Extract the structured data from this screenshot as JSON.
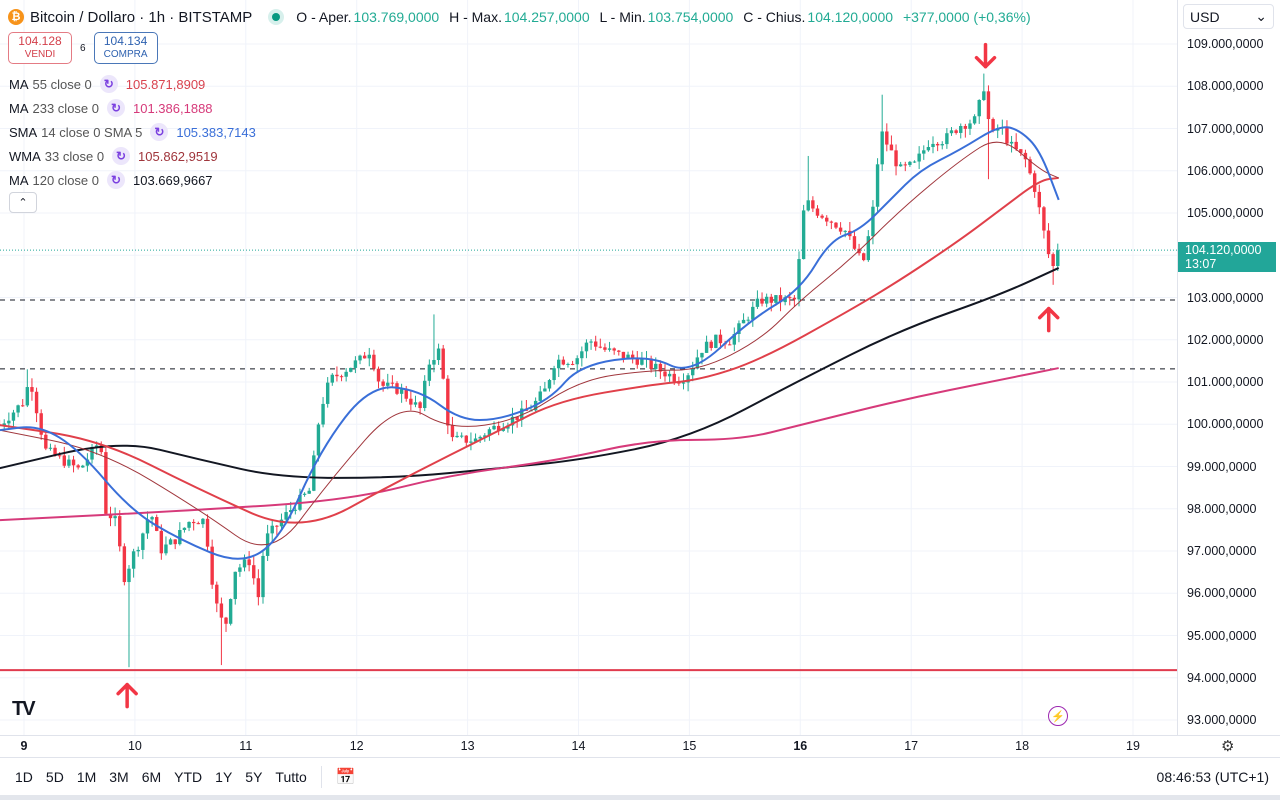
{
  "header": {
    "coin_icon": "₿",
    "title": "Bitcoin / Dollaro · 1h · BITSTAMP",
    "ohlc": [
      {
        "label": "O - Aper.",
        "value": "103.769,0000"
      },
      {
        "label": "H - Max.",
        "value": "104.257,0000"
      },
      {
        "label": "L - Min.",
        "value": "103.754,0000"
      },
      {
        "label": "C - Chius.",
        "value": "104.120,0000"
      }
    ],
    "change": "+377,0000 (+0,36%)"
  },
  "trade": {
    "sell_price": "104.128",
    "sell_label": "VENDI",
    "spread": "6",
    "buy_price": "104.134",
    "buy_label": "COMPRA"
  },
  "legend": [
    {
      "name": "MA",
      "params": "55 close 0",
      "value": "105.871,8909",
      "color": "#d9434f"
    },
    {
      "name": "MA",
      "params": "233 close 0",
      "value": "101.386,1888",
      "color": "#d63a7a"
    },
    {
      "name": "SMA",
      "params": "14 close 0 SMA 5",
      "value": "105.383,7143",
      "color": "#3a6fd8"
    },
    {
      "name": "WMA",
      "params": "33 close 0",
      "value": "105.862,9519",
      "color": "#a0363c"
    },
    {
      "name": "MA",
      "params": "120 close 0",
      "value": "103.669,9667",
      "color": "#131722"
    }
  ],
  "legend_icon": "↻",
  "collapse_icon": "⌃",
  "axis": {
    "currency": "USD",
    "currency_chevron": "⌄",
    "current_price": "104.120,0000",
    "countdown": "13:07"
  },
  "bottom": {
    "ranges": [
      "1D",
      "5D",
      "1M",
      "3M",
      "6M",
      "YTD",
      "1Y",
      "5Y",
      "Tutto"
    ],
    "calendar_icon": "📅",
    "clock": "08:46:53 (UTC+1)",
    "gear_icon": "⚙",
    "logo": "TV",
    "bolt_icon": "⚡"
  },
  "chart_data": {
    "type": "candlestick",
    "title": "Bitcoin / Dollaro · 1h · BITSTAMP",
    "xlabel": "day of month",
    "ylabel": "USD",
    "xlim": [
      8.78,
      19.4
    ],
    "ylim": [
      92700,
      109900
    ],
    "grid": true,
    "colors": {
      "up": "#22ab94",
      "down": "#f23645",
      "current": "#22a699",
      "arrow": "#f23645",
      "support": "#e03b4e"
    },
    "y_ticks": [
      {
        "value": 109000,
        "label": "109.000,0000"
      },
      {
        "value": 108000,
        "label": "108.000,0000"
      },
      {
        "value": 107000,
        "label": "107.000,0000"
      },
      {
        "value": 106000,
        "label": "106.000,0000"
      },
      {
        "value": 105000,
        "label": "105.000,0000"
      },
      {
        "value": 103000,
        "label": "103.000,0000"
      },
      {
        "value": 102000,
        "label": "102.000,0000"
      },
      {
        "value": 101000,
        "label": "101.000,0000"
      },
      {
        "value": 100000,
        "label": "100.000,0000"
      },
      {
        "value": 99000,
        "label": "99.000,0000"
      },
      {
        "value": 98000,
        "label": "98.000,0000"
      },
      {
        "value": 97000,
        "label": "97.000,0000"
      },
      {
        "value": 96000,
        "label": "96.000,0000"
      },
      {
        "value": 95000,
        "label": "95.000,0000"
      },
      {
        "value": 94000,
        "label": "94.000,0000"
      },
      {
        "value": 93000,
        "label": "93.000,0000"
      }
    ],
    "x_ticks": [
      {
        "value": 9,
        "label": "9",
        "bold": true
      },
      {
        "value": 10,
        "label": "10"
      },
      {
        "value": 11,
        "label": "11"
      },
      {
        "value": 12,
        "label": "12"
      },
      {
        "value": 13,
        "label": "13"
      },
      {
        "value": 14,
        "label": "14"
      },
      {
        "value": 15,
        "label": "15"
      },
      {
        "value": 16,
        "label": "16",
        "bold": true
      },
      {
        "value": 17,
        "label": "17"
      },
      {
        "value": 18,
        "label": "18"
      },
      {
        "value": 19,
        "label": "19"
      }
    ],
    "candle_interval_hours": 1,
    "price_path": [
      [
        8.78,
        99980
      ],
      [
        9.01,
        100570
      ],
      [
        9.05,
        101160
      ],
      [
        9.19,
        99390
      ],
      [
        9.5,
        98920
      ],
      [
        9.69,
        99630
      ],
      [
        9.73,
        97970
      ],
      [
        9.82,
        97730
      ],
      [
        9.91,
        96310
      ],
      [
        9.96,
        96780
      ],
      [
        10.05,
        97260
      ],
      [
        10.14,
        97970
      ],
      [
        10.23,
        97020
      ],
      [
        10.36,
        97260
      ],
      [
        10.5,
        97730
      ],
      [
        10.63,
        97730
      ],
      [
        10.72,
        95840
      ],
      [
        10.81,
        95130
      ],
      [
        10.9,
        96550
      ],
      [
        11.04,
        96780
      ],
      [
        11.11,
        95840
      ],
      [
        11.17,
        97260
      ],
      [
        11.4,
        97970
      ],
      [
        11.58,
        98440
      ],
      [
        11.67,
        100340
      ],
      [
        11.76,
        101050
      ],
      [
        11.89,
        101280
      ],
      [
        12.03,
        101520
      ],
      [
        12.12,
        101760
      ],
      [
        12.21,
        100930
      ],
      [
        12.39,
        100810
      ],
      [
        12.57,
        100340
      ],
      [
        12.66,
        101520
      ],
      [
        12.75,
        101760
      ],
      [
        12.84,
        99630
      ],
      [
        12.93,
        99630
      ],
      [
        13.07,
        99630
      ],
      [
        13.2,
        99870
      ],
      [
        13.38,
        100100
      ],
      [
        13.56,
        100340
      ],
      [
        13.7,
        100810
      ],
      [
        13.79,
        101520
      ],
      [
        13.97,
        101520
      ],
      [
        14.1,
        101990
      ],
      [
        14.24,
        101760
      ],
      [
        14.37,
        101640
      ],
      [
        14.55,
        101520
      ],
      [
        14.73,
        101280
      ],
      [
        14.92,
        101050
      ],
      [
        15.01,
        101280
      ],
      [
        15.1,
        101760
      ],
      [
        15.23,
        101990
      ],
      [
        15.37,
        101990
      ],
      [
        15.5,
        102470
      ],
      [
        15.64,
        102940
      ],
      [
        15.82,
        102940
      ],
      [
        15.95,
        102940
      ],
      [
        16.0,
        104120
      ],
      [
        16.04,
        105310
      ],
      [
        16.13,
        105070
      ],
      [
        16.27,
        104830
      ],
      [
        16.4,
        104600
      ],
      [
        16.54,
        103890
      ],
      [
        16.58,
        103890
      ],
      [
        16.67,
        105310
      ],
      [
        16.72,
        106960
      ],
      [
        16.81,
        106490
      ],
      [
        16.9,
        106020
      ],
      [
        17.03,
        106140
      ],
      [
        17.17,
        106730
      ],
      [
        17.3,
        106730
      ],
      [
        17.44,
        107080
      ],
      [
        17.58,
        107200
      ],
      [
        17.67,
        108150
      ],
      [
        17.71,
        106730
      ],
      [
        17.8,
        107080
      ],
      [
        17.89,
        106610
      ],
      [
        18.03,
        106250
      ],
      [
        18.12,
        105540
      ],
      [
        18.21,
        104360
      ],
      [
        18.27,
        103650
      ],
      [
        18.33,
        104120
      ]
    ],
    "extreme_wicks": [
      [
        9.05,
        101300
      ],
      [
        9.93,
        94250
      ],
      [
        10.78,
        94300
      ],
      [
        12.7,
        102600
      ],
      [
        16.06,
        106350
      ],
      [
        16.73,
        107800
      ],
      [
        17.67,
        108300
      ],
      [
        17.7,
        105800
      ],
      [
        18.29,
        103300
      ]
    ],
    "series": [
      {
        "name": "MA 120",
        "color": "#131722",
        "width": 2,
        "points": [
          [
            8.78,
            98960
          ],
          [
            9.86,
            99630
          ],
          [
            10.59,
            99160
          ],
          [
            11.31,
            98730
          ],
          [
            12.39,
            98730
          ],
          [
            13.29,
            98960
          ],
          [
            14.01,
            99150
          ],
          [
            15.01,
            99670
          ],
          [
            16.0,
            101050
          ],
          [
            16.9,
            102230
          ],
          [
            17.8,
            103060
          ],
          [
            18.33,
            103700
          ]
        ]
      },
      {
        "name": "MA 233",
        "color": "#d63a7a",
        "width": 2,
        "points": [
          [
            8.78,
            97730
          ],
          [
            10.59,
            97970
          ],
          [
            11.94,
            98210
          ],
          [
            12.84,
            98800
          ],
          [
            13.83,
            99150
          ],
          [
            14.64,
            99630
          ],
          [
            15.46,
            99630
          ],
          [
            16.0,
            99980
          ],
          [
            16.9,
            100570
          ],
          [
            17.8,
            101050
          ],
          [
            18.33,
            101330
          ]
        ]
      },
      {
        "name": "MA 55",
        "color": "#e0404a",
        "width": 2,
        "points": [
          [
            8.78,
            99980
          ],
          [
            9.69,
            99630
          ],
          [
            10.59,
            98440
          ],
          [
            11.49,
            97380
          ],
          [
            12.39,
            98680
          ],
          [
            13.29,
            99860
          ],
          [
            13.83,
            100570
          ],
          [
            14.64,
            100930
          ],
          [
            15.1,
            101050
          ],
          [
            15.64,
            101520
          ],
          [
            16.45,
            102700
          ],
          [
            16.9,
            103410
          ],
          [
            17.44,
            104360
          ],
          [
            17.8,
            105070
          ],
          [
            18.16,
            105780
          ],
          [
            18.33,
            105830
          ]
        ]
      },
      {
        "name": "WMA 33",
        "color": "#a0363c",
        "width": 1,
        "points": [
          [
            8.78,
            99860
          ],
          [
            9.69,
            99390
          ],
          [
            10.59,
            97970
          ],
          [
            11.22,
            96780
          ],
          [
            11.76,
            98680
          ],
          [
            12.39,
            100570
          ],
          [
            12.84,
            99860
          ],
          [
            13.47,
            100100
          ],
          [
            14.01,
            101050
          ],
          [
            14.64,
            101280
          ],
          [
            15.1,
            101280
          ],
          [
            15.64,
            101990
          ],
          [
            16.0,
            102940
          ],
          [
            16.45,
            103890
          ],
          [
            16.9,
            105070
          ],
          [
            17.44,
            106250
          ],
          [
            17.8,
            106850
          ],
          [
            18.16,
            106020
          ],
          [
            18.33,
            105830
          ]
        ]
      },
      {
        "name": "SMA 14",
        "color": "#3a6fd8",
        "width": 2,
        "points": [
          [
            8.78,
            99860
          ],
          [
            9.14,
            99980
          ],
          [
            9.5,
            99390
          ],
          [
            9.96,
            97970
          ],
          [
            10.41,
            97260
          ],
          [
            10.95,
            96670
          ],
          [
            11.31,
            97260
          ],
          [
            11.67,
            99390
          ],
          [
            12.12,
            100930
          ],
          [
            12.57,
            100810
          ],
          [
            12.93,
            100100
          ],
          [
            13.29,
            100100
          ],
          [
            13.74,
            100570
          ],
          [
            14.01,
            101400
          ],
          [
            14.64,
            101640
          ],
          [
            15.01,
            101160
          ],
          [
            15.55,
            102470
          ],
          [
            16.0,
            103180
          ],
          [
            16.27,
            104360
          ],
          [
            16.54,
            104600
          ],
          [
            16.81,
            105310
          ],
          [
            17.08,
            106020
          ],
          [
            17.44,
            106490
          ],
          [
            17.8,
            107080
          ],
          [
            17.98,
            106960
          ],
          [
            18.16,
            106490
          ],
          [
            18.33,
            105310
          ]
        ]
      }
    ],
    "horizontal_lines": [
      {
        "name": "resistance-dashed-upper",
        "value": 102940,
        "style": "dashed",
        "color": "#131722"
      },
      {
        "name": "resistance-dashed-lower",
        "value": 101310,
        "style": "dashed",
        "color": "#131722"
      },
      {
        "name": "support-line",
        "value": 94180,
        "style": "solid",
        "color": "#e03b4e"
      },
      {
        "name": "current-price-line",
        "value": 104120,
        "style": "dotted",
        "color": "#22a699"
      }
    ],
    "arrows": [
      {
        "t": 17.67,
        "price": 108700,
        "direction": "down"
      },
      {
        "t": 18.24,
        "price": 102500,
        "direction": "up"
      },
      {
        "t": 9.93,
        "price": 93600,
        "direction": "up"
      }
    ]
  }
}
